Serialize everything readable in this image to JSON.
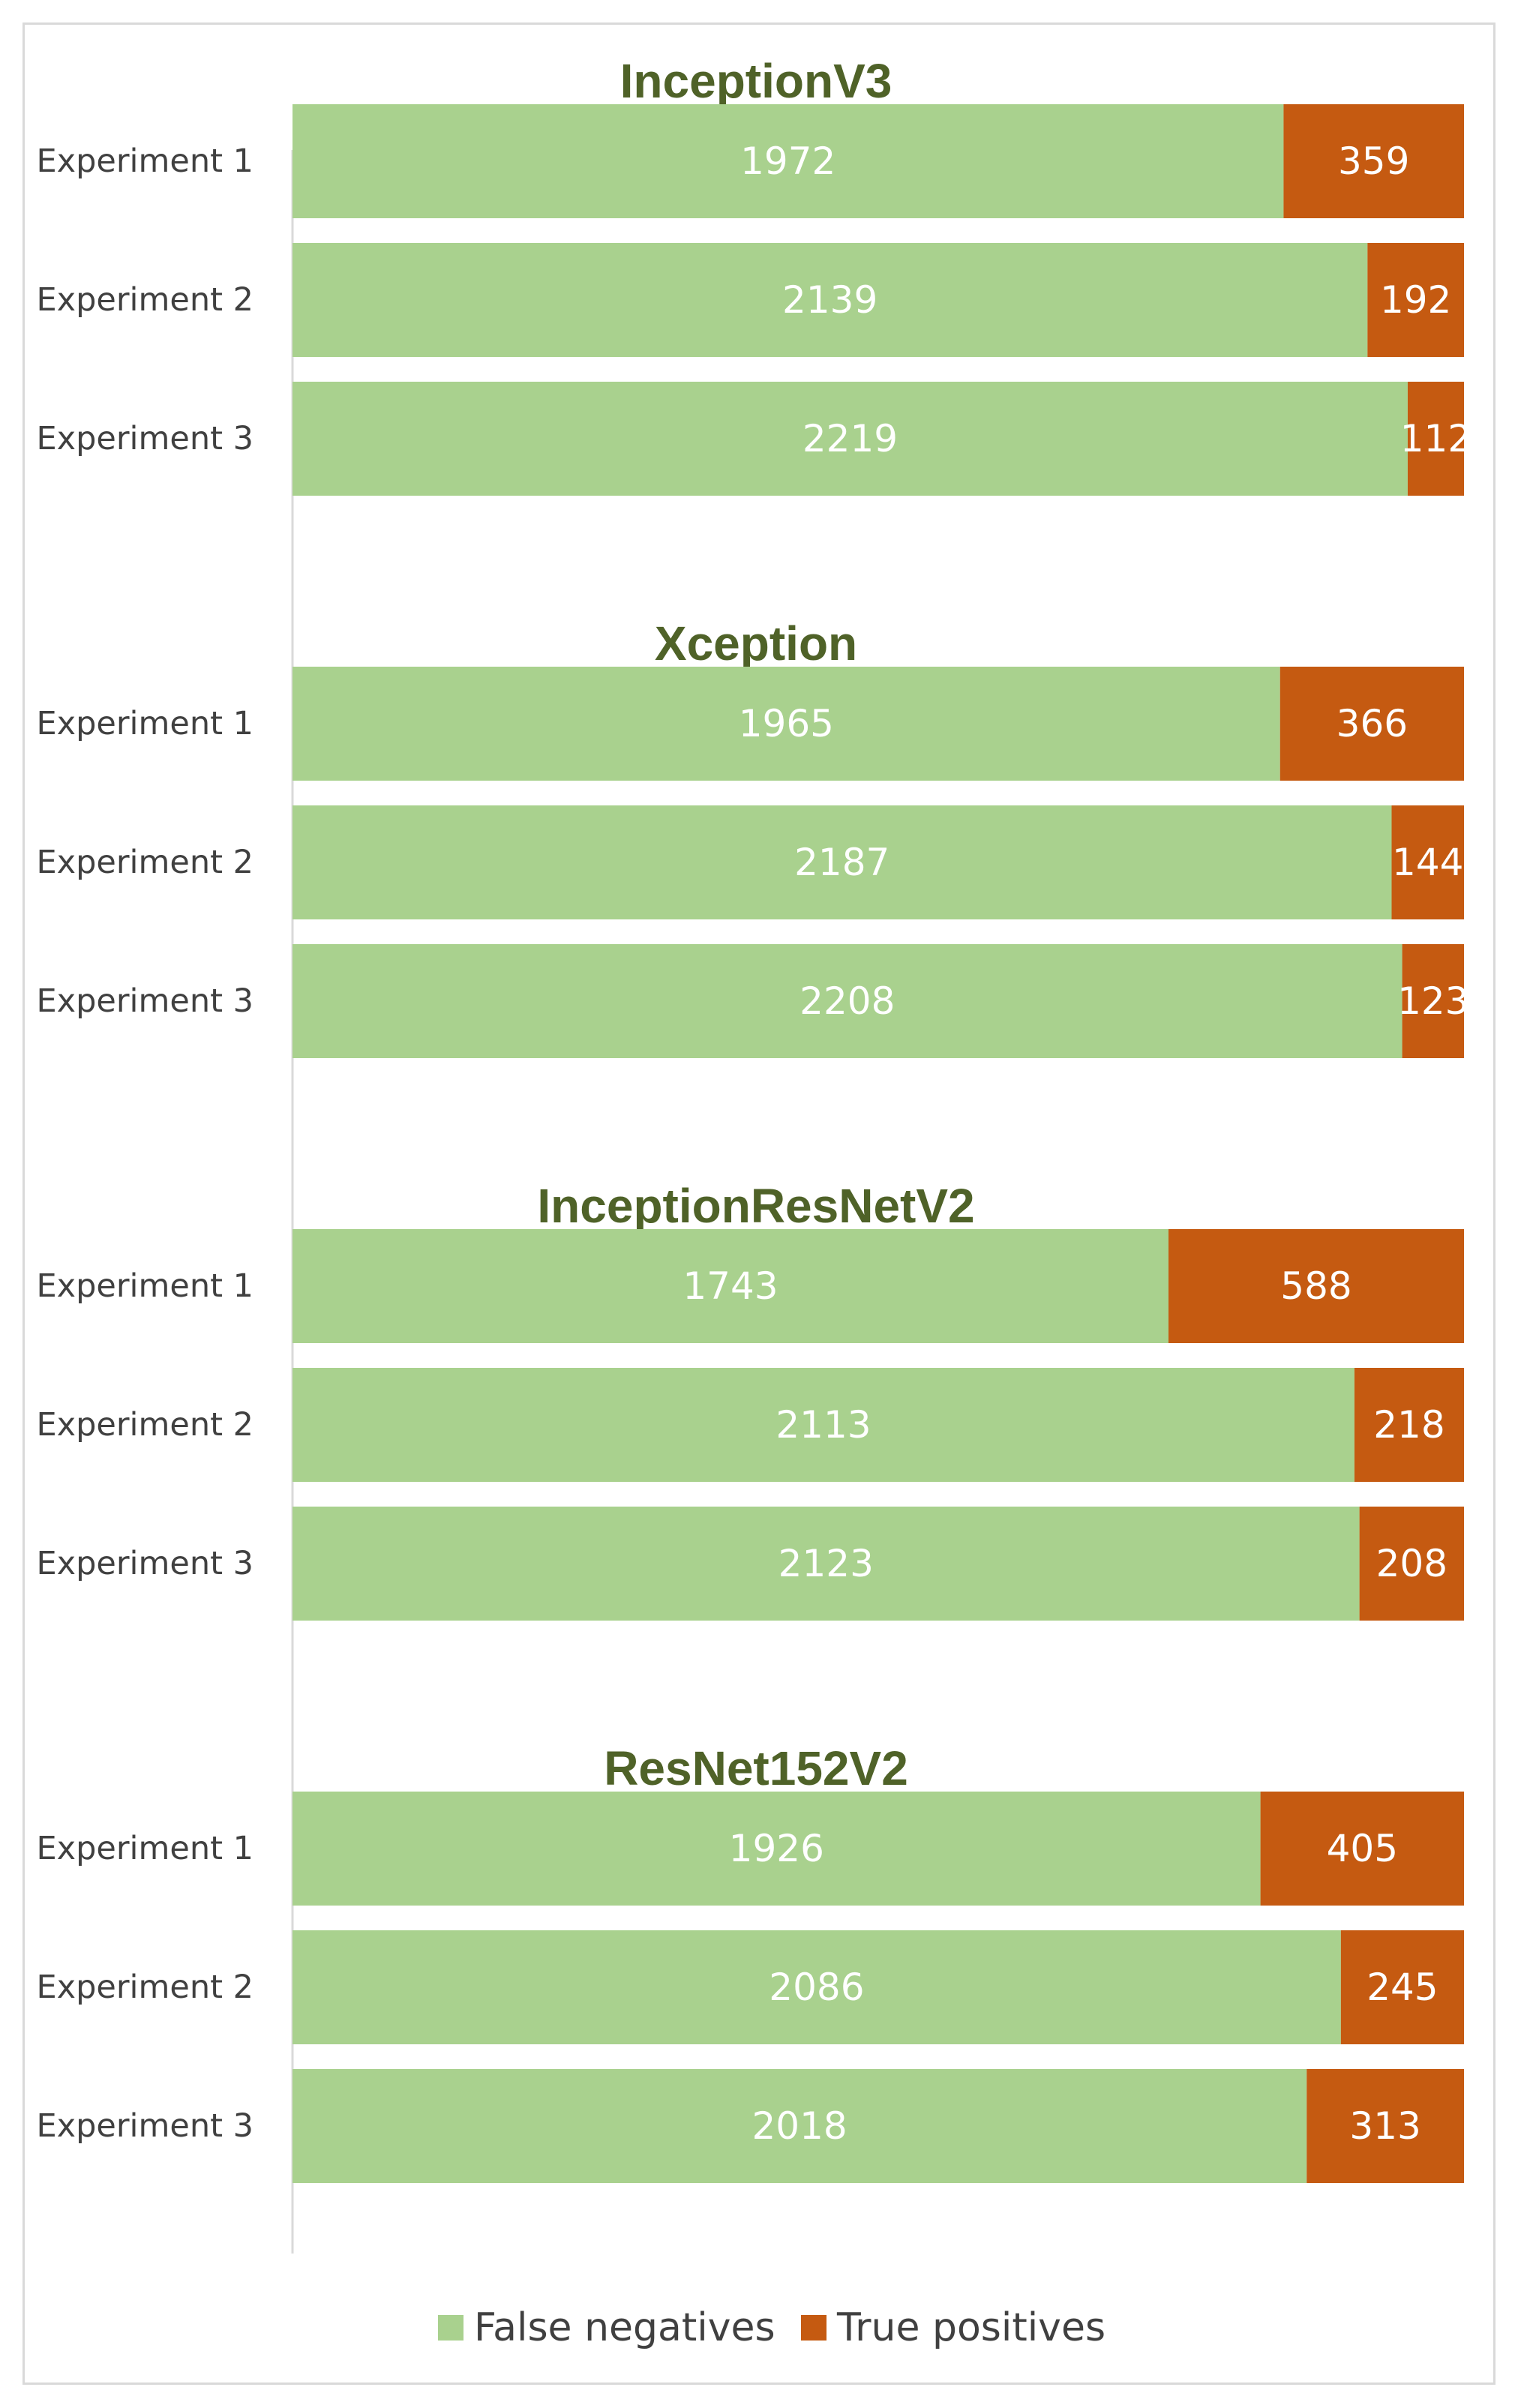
{
  "colors": {
    "false_negatives": "#a9d18e",
    "true_positives": "#c55a11",
    "title": "#4f6228"
  },
  "chart_data": [
    {
      "type": "bar",
      "orientation": "horizontal",
      "stacked": true,
      "title": "InceptionV3",
      "categories": [
        "Experiment 1",
        "Experiment 2",
        "Experiment 3"
      ],
      "series": [
        {
          "name": "False negatives",
          "values": [
            1972,
            2139,
            2219
          ]
        },
        {
          "name": "True positives",
          "values": [
            359,
            192,
            112
          ]
        }
      ],
      "xlim": [
        0,
        2331
      ]
    },
    {
      "type": "bar",
      "orientation": "horizontal",
      "stacked": true,
      "title": "Xception",
      "categories": [
        "Experiment 1",
        "Experiment 2",
        "Experiment 3"
      ],
      "series": [
        {
          "name": "False negatives",
          "values": [
            1965,
            2187,
            2208
          ]
        },
        {
          "name": "True positives",
          "values": [
            366,
            144,
            123
          ]
        }
      ],
      "xlim": [
        0,
        2331
      ]
    },
    {
      "type": "bar",
      "orientation": "horizontal",
      "stacked": true,
      "title": "InceptionResNetV2",
      "categories": [
        "Experiment 1",
        "Experiment 2",
        "Experiment 3"
      ],
      "series": [
        {
          "name": "False negatives",
          "values": [
            1743,
            2113,
            2123
          ]
        },
        {
          "name": "True positives",
          "values": [
            588,
            218,
            208
          ]
        }
      ],
      "xlim": [
        0,
        2331
      ]
    },
    {
      "type": "bar",
      "orientation": "horizontal",
      "stacked": true,
      "title": "ResNet152V2",
      "categories": [
        "Experiment 1",
        "Experiment 2",
        "Experiment 3"
      ],
      "series": [
        {
          "name": "False negatives",
          "values": [
            1926,
            2086,
            2018
          ]
        },
        {
          "name": "True positives",
          "values": [
            405,
            245,
            313
          ]
        }
      ],
      "xlim": [
        0,
        2331
      ]
    }
  ],
  "legend": {
    "position": "bottom",
    "items": [
      {
        "label": "False negatives"
      },
      {
        "label": "True positives"
      }
    ]
  }
}
